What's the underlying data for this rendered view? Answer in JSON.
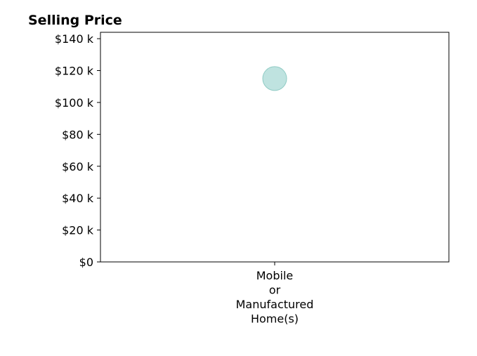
{
  "chart_data": {
    "type": "scatter",
    "title": "Selling Price",
    "categories": [
      [
        "Mobile",
        "or",
        "Manufactured",
        "Home(s)"
      ]
    ],
    "y_ticks": [
      "$0",
      "$20 k",
      "$40 k",
      "$60 k",
      "$80 k",
      "$100 k",
      "$120 k",
      "$140 k"
    ],
    "y_tick_values": [
      0,
      20000,
      40000,
      60000,
      80000,
      100000,
      120000,
      140000
    ],
    "ylim": [
      0,
      144000
    ],
    "series": [
      {
        "values": [
          115000
        ],
        "color": "#a9d9d5",
        "edge_color": "#8fcbc4"
      }
    ],
    "grid": false,
    "legend": "none"
  }
}
